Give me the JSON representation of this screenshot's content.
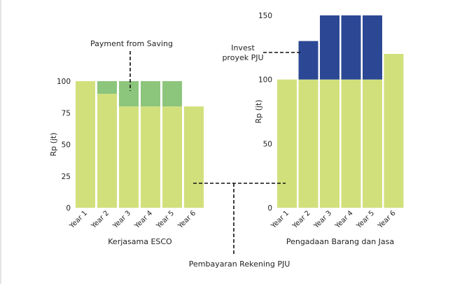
{
  "colors": {
    "light_green": "#d2e07c",
    "mid_green": "#8cc57c",
    "dark_blue": "#2c4895",
    "edge_line": "#c8c8c8"
  },
  "chart_data": [
    {
      "type": "bar",
      "stacked": true,
      "xlabel": "Kerjasama ESCO",
      "ylabel": "Rp (jt)",
      "ylim": [
        0,
        100
      ],
      "yticks": [
        0,
        25,
        50,
        75,
        100
      ],
      "categories": [
        "Year 1",
        "Year 2",
        "Year 3",
        "Year 4",
        "Year 5",
        "Year 6"
      ],
      "series": [
        {
          "values": [
            100,
            90,
            80,
            80,
            80,
            80
          ],
          "color": "#d2e07c"
        },
        {
          "values": [
            0,
            10,
            20,
            20,
            20,
            0
          ],
          "color": "#8cc57c"
        }
      ],
      "grid": false
    },
    {
      "type": "bar",
      "stacked": true,
      "xlabel": "Pengadaan Barang dan Jasa",
      "ylabel": "Rp (jt)",
      "ylim": [
        0,
        150
      ],
      "yticks": [
        0,
        50,
        100,
        150
      ],
      "categories": [
        "Year 1",
        "Year 2",
        "Year 3",
        "Year 4",
        "Year 5",
        "Year 6"
      ],
      "series": [
        {
          "values": [
            100,
            100,
            100,
            100,
            100,
            120
          ],
          "color": "#d2e07c"
        },
        {
          "values": [
            0,
            30,
            50,
            50,
            50,
            0
          ],
          "color": "#2c4895"
        }
      ],
      "grid": false
    }
  ],
  "annotations": {
    "payment_from_saving": "Payment from Saving",
    "invest_line1": "Invest",
    "invest_line2": "proyek PJU",
    "pembayaran": "Pembayaran Rekening PJU"
  }
}
